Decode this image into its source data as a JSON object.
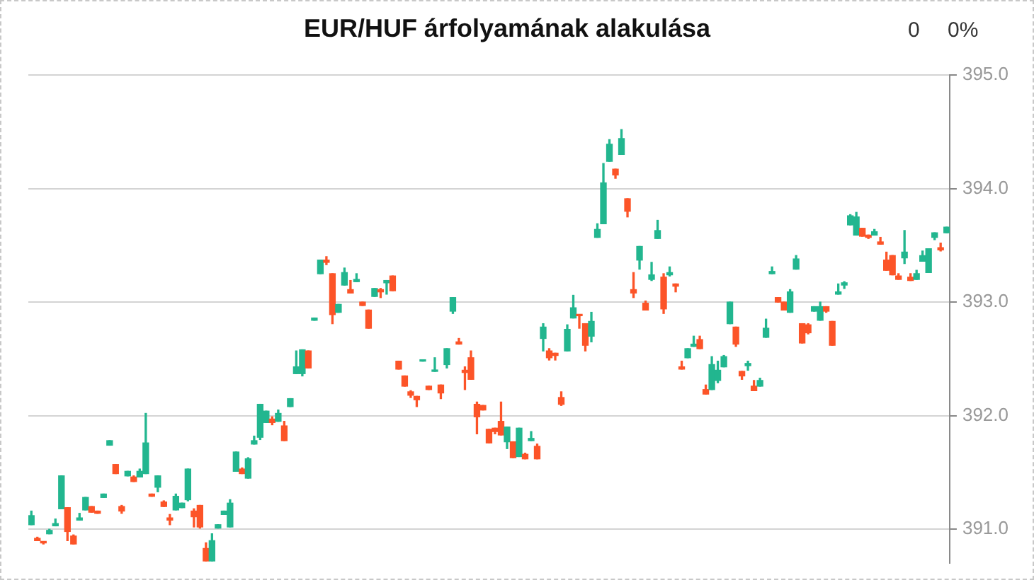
{
  "chart_data": {
    "type": "candlestick",
    "title": "EUR/HUF árfolyamának alakulása",
    "annotations": [
      "0",
      "0%"
    ],
    "categories": [
      null,
      null,
      null,
      null,
      null,
      null,
      null,
      null,
      null,
      null,
      null,
      null,
      null,
      null,
      null,
      null,
      null,
      null,
      null,
      null,
      null,
      null,
      null,
      null,
      null,
      null,
      null,
      null,
      null,
      null,
      null,
      null,
      null,
      null,
      null,
      null,
      null,
      null,
      null,
      null,
      null,
      null,
      null,
      null,
      null,
      null,
      null,
      null,
      null,
      null,
      null,
      null,
      null,
      null,
      null,
      null,
      null,
      null,
      null,
      null,
      null,
      null,
      null,
      null,
      null,
      null,
      null,
      null,
      null,
      null,
      null,
      null,
      null,
      null,
      null,
      null,
      null,
      null,
      null,
      null,
      null,
      null,
      null,
      null,
      null,
      null,
      null,
      null,
      null,
      null,
      null,
      null,
      null,
      null,
      null,
      null,
      null,
      null,
      null,
      null,
      null,
      null,
      null,
      null,
      null,
      null,
      null,
      null,
      null,
      null,
      null,
      null,
      null,
      null,
      null,
      null,
      null,
      null,
      null,
      null,
      null,
      null,
      null,
      null,
      null,
      null,
      null,
      null,
      null,
      null,
      null,
      null,
      null,
      null,
      null,
      null,
      null,
      null,
      null,
      null,
      null,
      null,
      null,
      null,
      null,
      null,
      null,
      null,
      null,
      null,
      null,
      null,
      null
    ],
    "ohlc": [
      [
        391.04,
        391.16,
        391.04,
        391.12
      ],
      [
        390.92,
        390.93,
        390.9,
        390.9
      ],
      [
        390.89,
        390.89,
        390.87,
        390.88
      ],
      [
        390.96,
        391.0,
        390.96,
        390.99
      ],
      [
        391.03,
        391.09,
        391.03,
        391.05
      ],
      [
        391.18,
        391.47,
        391.18,
        391.47
      ],
      [
        391.19,
        391.19,
        390.9,
        390.98
      ],
      [
        390.94,
        390.95,
        390.87,
        390.87
      ],
      [
        391.08,
        391.14,
        391.08,
        391.1
      ],
      [
        391.17,
        391.28,
        391.17,
        391.28
      ],
      [
        391.2,
        391.2,
        391.15,
        391.15
      ],
      [
        391.16,
        391.16,
        391.14,
        391.14
      ],
      [
        391.28,
        391.31,
        391.28,
        391.31
      ],
      [
        391.74,
        391.78,
        391.74,
        391.78
      ],
      [
        391.57,
        391.57,
        391.49,
        391.49
      ],
      [
        391.2,
        391.21,
        391.14,
        391.16
      ],
      [
        391.47,
        391.51,
        391.47,
        391.51
      ],
      [
        391.46,
        391.47,
        391.42,
        391.42
      ],
      [
        391.46,
        391.53,
        391.46,
        391.51
      ],
      [
        391.49,
        392.02,
        391.49,
        391.76
      ],
      [
        391.31,
        391.31,
        391.29,
        391.29
      ],
      [
        391.37,
        391.47,
        391.33,
        391.47
      ],
      [
        391.24,
        391.25,
        391.2,
        391.2
      ],
      [
        391.1,
        391.13,
        391.04,
        391.08
      ],
      [
        391.17,
        391.31,
        391.17,
        391.29
      ],
      [
        391.19,
        391.23,
        391.19,
        391.23
      ],
      [
        391.26,
        391.53,
        391.25,
        391.53
      ],
      [
        391.16,
        391.18,
        391.02,
        391.11
      ],
      [
        391.21,
        391.21,
        391.01,
        391.02
      ],
      [
        390.83,
        390.88,
        390.72,
        390.72
      ],
      [
        390.72,
        390.96,
        390.72,
        390.9
      ],
      [
        391.01,
        391.04,
        391.01,
        391.04
      ],
      [
        391.13,
        391.16,
        391.13,
        391.16
      ],
      [
        391.02,
        391.26,
        391.02,
        391.23
      ],
      [
        391.51,
        391.68,
        391.51,
        391.68
      ],
      [
        391.53,
        391.54,
        391.49,
        391.49
      ],
      [
        391.45,
        391.63,
        391.45,
        391.62
      ],
      [
        391.75,
        391.82,
        391.75,
        391.78
      ],
      [
        391.81,
        392.1,
        391.79,
        392.1
      ],
      [
        391.94,
        392.04,
        391.94,
        392.04
      ],
      [
        391.97,
        391.99,
        391.92,
        391.94
      ],
      [
        391.95,
        392.05,
        391.95,
        392.02
      ],
      [
        391.91,
        391.95,
        391.78,
        391.78
      ],
      [
        392.08,
        392.15,
        392.08,
        392.15
      ],
      [
        392.37,
        392.57,
        392.37,
        392.43
      ],
      [
        392.37,
        392.58,
        392.35,
        392.58
      ],
      [
        392.57,
        392.57,
        392.42,
        392.42
      ],
      [
        392.84,
        392.86,
        392.84,
        392.86
      ],
      [
        393.25,
        393.37,
        393.25,
        393.37
      ],
      [
        393.37,
        393.4,
        393.33,
        393.35
      ],
      [
        393.25,
        393.25,
        392.81,
        392.89
      ],
      [
        392.91,
        392.98,
        392.91,
        392.98
      ],
      [
        393.15,
        393.3,
        393.15,
        393.26
      ],
      [
        393.11,
        393.19,
        393.08,
        393.08
      ],
      [
        393.18,
        393.25,
        393.18,
        393.2
      ],
      [
        393.0,
        393.0,
        392.97,
        392.97
      ],
      [
        392.93,
        392.93,
        392.77,
        392.77
      ],
      [
        393.05,
        393.12,
        393.05,
        393.12
      ],
      [
        393.11,
        393.12,
        393.04,
        393.09
      ],
      [
        393.17,
        393.19,
        393.07,
        393.19
      ],
      [
        393.23,
        393.23,
        393.1,
        393.1
      ],
      [
        392.48,
        392.48,
        392.41,
        392.41
      ],
      [
        392.35,
        392.35,
        392.26,
        392.26
      ],
      [
        392.21,
        392.22,
        392.16,
        392.18
      ],
      [
        392.17,
        392.17,
        392.08,
        392.14
      ],
      [
        392.48,
        392.49,
        392.48,
        392.49
      ],
      [
        392.26,
        392.26,
        392.23,
        392.23
      ],
      [
        392.39,
        392.51,
        392.39,
        392.4
      ],
      [
        392.27,
        392.27,
        392.15,
        392.2
      ],
      [
        392.45,
        392.59,
        392.42,
        392.59
      ],
      [
        392.92,
        393.04,
        392.9,
        393.04
      ],
      [
        392.65,
        392.68,
        392.63,
        392.63
      ],
      [
        392.4,
        392.43,
        392.23,
        392.38
      ],
      [
        392.51,
        392.57,
        392.32,
        392.32
      ],
      [
        392.1,
        392.12,
        391.84,
        391.99
      ],
      [
        392.09,
        392.09,
        392.05,
        392.05
      ],
      [
        391.88,
        391.88,
        391.76,
        391.76
      ],
      [
        391.89,
        391.89,
        391.84,
        391.86
      ],
      [
        391.95,
        392.12,
        391.83,
        391.83
      ],
      [
        391.77,
        391.9,
        391.71,
        391.9
      ],
      [
        391.77,
        391.77,
        391.63,
        391.63
      ],
      [
        391.64,
        391.89,
        391.64,
        391.89
      ],
      [
        391.66,
        391.67,
        391.62,
        391.62
      ],
      [
        391.78,
        391.86,
        391.78,
        391.8
      ],
      [
        391.73,
        391.75,
        391.62,
        391.62
      ],
      [
        392.68,
        392.81,
        392.57,
        392.78
      ],
      [
        392.57,
        392.59,
        392.49,
        392.51
      ],
      [
        392.55,
        392.55,
        392.49,
        392.53
      ],
      [
        392.16,
        392.21,
        392.09,
        392.1
      ],
      [
        392.57,
        392.8,
        392.57,
        392.76
      ],
      [
        392.86,
        393.06,
        392.86,
        392.95
      ],
      [
        392.89,
        392.89,
        392.77,
        392.88
      ],
      [
        392.81,
        392.81,
        392.57,
        392.62
      ],
      [
        392.7,
        392.91,
        392.65,
        392.83
      ],
      [
        393.57,
        393.69,
        393.57,
        393.64
      ],
      [
        393.69,
        394.22,
        393.69,
        394.05
      ],
      [
        394.24,
        394.43,
        394.24,
        394.39
      ],
      [
        394.17,
        394.17,
        394.09,
        394.12
      ],
      [
        394.3,
        394.52,
        394.3,
        394.44
      ],
      [
        393.91,
        393.91,
        393.75,
        393.8
      ],
      [
        393.11,
        393.26,
        393.04,
        393.08
      ],
      [
        393.37,
        393.49,
        393.29,
        393.49
      ],
      [
        392.99,
        393.01,
        392.93,
        392.93
      ],
      [
        393.2,
        393.35,
        393.19,
        393.24
      ],
      [
        393.56,
        393.72,
        393.56,
        393.63
      ],
      [
        393.22,
        393.25,
        392.9,
        392.94
      ],
      [
        393.24,
        393.31,
        393.23,
        393.26
      ],
      [
        393.16,
        393.16,
        393.09,
        393.14
      ],
      [
        392.43,
        392.48,
        392.41,
        392.41
      ],
      [
        392.51,
        392.59,
        392.51,
        392.59
      ],
      [
        392.61,
        392.7,
        392.61,
        392.63
      ],
      [
        392.67,
        392.7,
        392.59,
        392.59
      ],
      [
        392.23,
        392.27,
        392.19,
        392.19
      ],
      [
        392.23,
        392.52,
        392.23,
        392.45
      ],
      [
        392.31,
        392.48,
        392.29,
        392.4
      ],
      [
        392.43,
        392.53,
        392.43,
        392.52
      ],
      [
        392.81,
        393.0,
        392.81,
        393.0
      ],
      [
        392.78,
        392.78,
        392.61,
        392.63
      ],
      [
        392.39,
        392.39,
        392.32,
        392.35
      ],
      [
        392.44,
        392.48,
        392.4,
        392.46
      ],
      [
        392.26,
        392.31,
        392.22,
        392.22
      ],
      [
        392.26,
        392.33,
        392.26,
        392.31
      ],
      [
        392.69,
        392.85,
        392.69,
        392.77
      ],
      [
        393.25,
        393.31,
        393.25,
        393.27
      ],
      [
        393.04,
        393.04,
        393.0,
        393.0
      ],
      [
        393.0,
        393.0,
        392.93,
        392.93
      ],
      [
        392.91,
        393.11,
        392.91,
        393.09
      ],
      [
        393.29,
        393.41,
        393.29,
        393.38
      ],
      [
        392.81,
        392.81,
        392.64,
        392.64
      ],
      [
        392.8,
        392.81,
        392.72,
        392.73
      ],
      [
        392.92,
        392.96,
        392.92,
        392.96
      ],
      [
        392.84,
        393.0,
        392.84,
        392.96
      ],
      [
        392.96,
        392.96,
        392.91,
        392.92
      ],
      [
        392.83,
        392.83,
        392.62,
        392.62
      ],
      [
        393.07,
        393.16,
        393.07,
        393.09
      ],
      [
        393.15,
        393.18,
        393.12,
        393.17
      ],
      [
        393.68,
        393.77,
        393.68,
        393.76
      ],
      [
        393.59,
        393.79,
        393.59,
        393.75
      ],
      [
        393.65,
        393.65,
        393.58,
        393.58
      ],
      [
        393.59,
        393.59,
        393.56,
        393.57
      ],
      [
        393.59,
        393.64,
        393.59,
        393.62
      ],
      [
        393.53,
        393.57,
        393.51,
        393.51
      ],
      [
        393.37,
        393.44,
        393.28,
        393.28
      ],
      [
        393.41,
        393.41,
        393.24,
        393.24
      ],
      [
        393.23,
        393.25,
        393.2,
        393.2
      ],
      [
        393.39,
        393.63,
        393.34,
        393.44
      ],
      [
        393.22,
        393.25,
        393.19,
        393.19
      ],
      [
        393.2,
        393.28,
        393.2,
        393.25
      ],
      [
        393.36,
        393.45,
        393.36,
        393.41
      ],
      [
        393.26,
        393.47,
        393.26,
        393.47
      ],
      [
        393.57,
        393.61,
        393.55,
        393.61
      ],
      [
        393.48,
        393.52,
        393.45,
        393.46
      ],
      [
        393.61,
        393.66,
        393.61,
        393.66
      ]
    ],
    "colors": [
      "#22b68f",
      "#fc5428",
      "#fc5428",
      "#22b68f",
      "#22b68f",
      "#22b68f",
      "#fc5428",
      "#fc5428",
      "#22b68f",
      "#22b68f",
      "#fc5428",
      "#fc5428",
      "#22b68f",
      "#22b68f",
      "#fc5428",
      "#fc5428",
      "#22b68f",
      "#fc5428",
      "#22b68f",
      "#22b68f",
      "#fc5428",
      "#22b68f",
      "#fc5428",
      "#fc5428",
      "#22b68f",
      "#22b68f",
      "#22b68f",
      "#fc5428",
      "#fc5428",
      "#fc5428",
      "#22b68f",
      "#22b68f",
      "#22b68f",
      "#22b68f",
      "#22b68f",
      "#fc5428",
      "#22b68f",
      "#22b68f",
      "#22b68f",
      "#22b68f",
      "#fc5428",
      "#22b68f",
      "#fc5428",
      "#22b68f",
      "#22b68f",
      "#22b68f",
      "#fc5428",
      "#22b68f",
      "#22b68f",
      "#fc5428",
      "#fc5428",
      "#22b68f",
      "#22b68f",
      "#fc5428",
      "#22b68f",
      "#fc5428",
      "#fc5428",
      "#22b68f",
      "#fc5428",
      "#22b68f",
      "#fc5428",
      "#fc5428",
      "#fc5428",
      "#fc5428",
      "#fc5428",
      "#22b68f",
      "#fc5428",
      "#22b68f",
      "#fc5428",
      "#22b68f",
      "#22b68f",
      "#fc5428",
      "#fc5428",
      "#fc5428",
      "#fc5428",
      "#fc5428",
      "#fc5428",
      "#fc5428",
      "#fc5428",
      "#22b68f",
      "#fc5428",
      "#22b68f",
      "#fc5428",
      "#22b68f",
      "#fc5428",
      "#22b68f",
      "#fc5428",
      "#fc5428",
      "#fc5428",
      "#22b68f",
      "#22b68f",
      "#fc5428",
      "#fc5428",
      "#22b68f",
      "#22b68f",
      "#22b68f",
      "#22b68f",
      "#fc5428",
      "#22b68f",
      "#fc5428",
      "#fc5428",
      "#22b68f",
      "#fc5428",
      "#22b68f",
      "#22b68f",
      "#fc5428",
      "#22b68f",
      "#fc5428",
      "#fc5428",
      "#22b68f",
      "#22b68f",
      "#fc5428",
      "#fc5428",
      "#22b68f",
      "#22b68f",
      "#22b68f",
      "#22b68f",
      "#fc5428",
      "#fc5428",
      "#22b68f",
      "#fc5428",
      "#22b68f",
      "#22b68f",
      "#22b68f",
      "#fc5428",
      "#fc5428",
      "#22b68f",
      "#22b68f",
      "#fc5428",
      "#fc5428",
      "#22b68f",
      "#22b68f",
      "#fc5428",
      "#fc5428",
      "#22b68f",
      "#22b68f",
      "#22b68f",
      "#22b68f",
      "#fc5428",
      "#fc5428",
      "#22b68f",
      "#fc5428",
      "#fc5428",
      "#fc5428",
      "#fc5428",
      "#22b68f",
      "#fc5428",
      "#22b68f",
      "#22b68f",
      "#22b68f",
      "#22b68f",
      "#fc5428",
      "#22b68f"
    ],
    "ylim": [
      390.7,
      395.0
    ],
    "yticks": [
      {
        "value": 391,
        "label": "391.0"
      },
      {
        "value": 392,
        "label": "392.0"
      },
      {
        "value": 393,
        "label": "393.0"
      },
      {
        "value": 394,
        "label": "394.0"
      },
      {
        "value": 395,
        "label": "395.0"
      }
    ],
    "grid": "y",
    "tick_labels": "y",
    "legend": false
  }
}
